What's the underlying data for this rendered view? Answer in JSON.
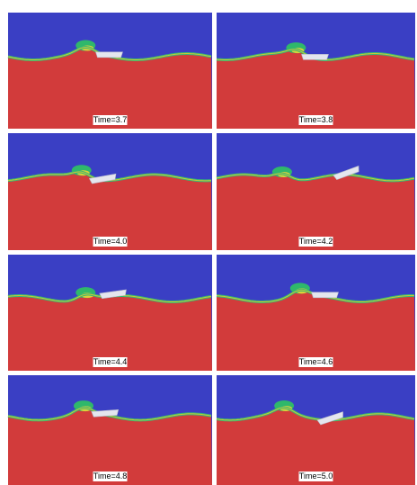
{
  "panels": [
    {
      "label": "Time=3.7"
    },
    {
      "label": "Time=3.8"
    },
    {
      "label": "Time=4.0"
    },
    {
      "label": "Time=4.2"
    },
    {
      "label": "Time=4.4"
    },
    {
      "label": "Time=4.6"
    },
    {
      "label": "Time=4.8"
    },
    {
      "label": "Time=5.0"
    }
  ]
}
